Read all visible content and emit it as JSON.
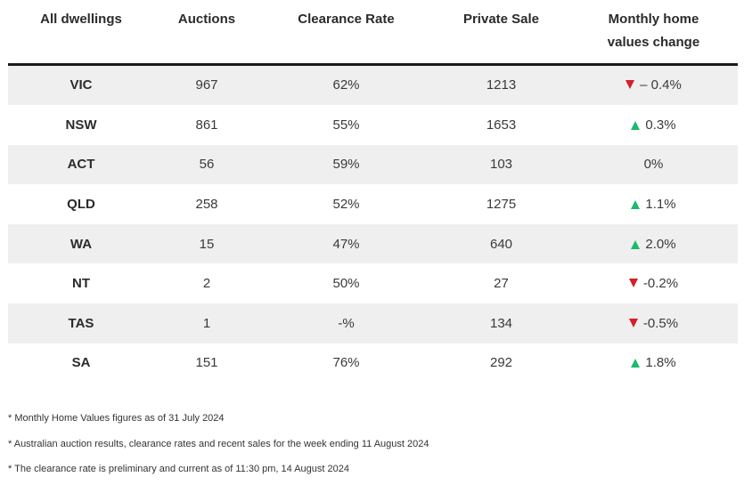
{
  "table": {
    "headers": [
      "All dwellings",
      "Auctions",
      "Clearance Rate",
      "Private Sale",
      "Monthly home values change"
    ],
    "rows": [
      {
        "state": "VIC",
        "auctions": "967",
        "clearance": "62%",
        "private": "1213",
        "trend": "down",
        "change": "– 0.4%"
      },
      {
        "state": "NSW",
        "auctions": "861",
        "clearance": "55%",
        "private": "1653",
        "trend": "up",
        "change": "0.3%"
      },
      {
        "state": "ACT",
        "auctions": "56",
        "clearance": "59%",
        "private": "103",
        "trend": "none",
        "change": "0%"
      },
      {
        "state": "QLD",
        "auctions": "258",
        "clearance": "52%",
        "private": "1275",
        "trend": "up",
        "change": "1.1%"
      },
      {
        "state": "WA",
        "auctions": "15",
        "clearance": "47%",
        "private": "640",
        "trend": "up",
        "change": "2.0%"
      },
      {
        "state": "NT",
        "auctions": "2",
        "clearance": "50%",
        "private": "27",
        "trend": "down",
        "change": "-0.2%"
      },
      {
        "state": "TAS",
        "auctions": "1",
        "clearance": "-%",
        "private": "134",
        "trend": "down",
        "change": "-0.5%"
      },
      {
        "state": "SA",
        "auctions": "151",
        "clearance": "76%",
        "private": "292",
        "trend": "up",
        "change": "1.8%"
      }
    ]
  },
  "colors": {
    "up": "#1db96b",
    "down": "#d31f2a",
    "shade": "#efefef"
  },
  "notes": [
    "* Monthly Home Values figures as of 31 July 2024",
    "* Australian auction results, clearance rates and recent sales for the week ending 11 August 2024",
    "* The clearance rate is preliminary and current as of 11:30 pm, 14 August 2024"
  ]
}
